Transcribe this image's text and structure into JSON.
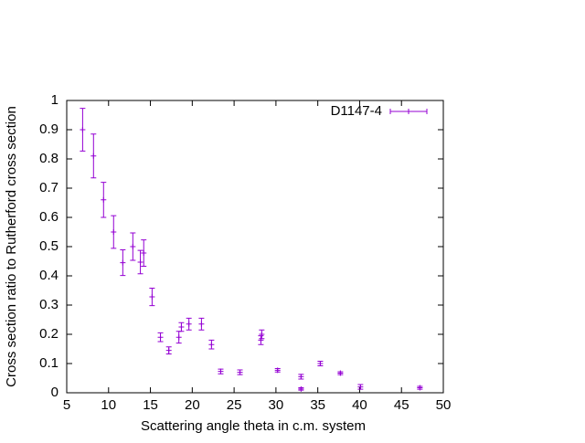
{
  "chart_data": {
    "type": "errorbar",
    "xlabel": "Scattering angle theta in c.m. system",
    "ylabel": "Cross section ratio to Rutherford cross section",
    "xlim": [
      5,
      50
    ],
    "ylim": [
      0,
      1
    ],
    "xticks": [
      5,
      10,
      15,
      20,
      25,
      30,
      35,
      40,
      45,
      50
    ],
    "yticks": [
      0,
      0.1,
      0.2,
      0.3,
      0.4,
      0.5,
      0.6,
      0.7,
      0.8,
      0.9,
      1
    ],
    "legend": "top right",
    "series": [
      {
        "name": "D1147-4",
        "color": "#9400d3",
        "x": [
          6.9,
          8.2,
          9.4,
          10.6,
          11.7,
          12.9,
          13.8,
          14.2,
          15.2,
          16.2,
          17.2,
          18.4,
          18.7,
          19.6,
          21.1,
          22.3,
          23.4,
          25.7,
          28.2,
          28.3,
          30.2,
          33.0,
          33.0,
          35.3,
          37.7,
          40.1,
          47.2
        ],
        "values": [
          0.9,
          0.81,
          0.66,
          0.55,
          0.445,
          0.5,
          0.447,
          0.478,
          0.328,
          0.19,
          0.145,
          0.19,
          0.225,
          0.235,
          0.235,
          0.165,
          0.073,
          0.07,
          0.18,
          0.2,
          0.077,
          0.055,
          0.013,
          0.1,
          0.067,
          0.02,
          0.017
        ],
        "errors": [
          0.073,
          0.075,
          0.06,
          0.056,
          0.044,
          0.047,
          0.04,
          0.045,
          0.03,
          0.015,
          0.012,
          0.02,
          0.015,
          0.02,
          0.02,
          0.015,
          0.008,
          0.008,
          0.015,
          0.015,
          0.006,
          0.008,
          0.004,
          0.008,
          0.005,
          0.008,
          0.005
        ]
      }
    ]
  }
}
